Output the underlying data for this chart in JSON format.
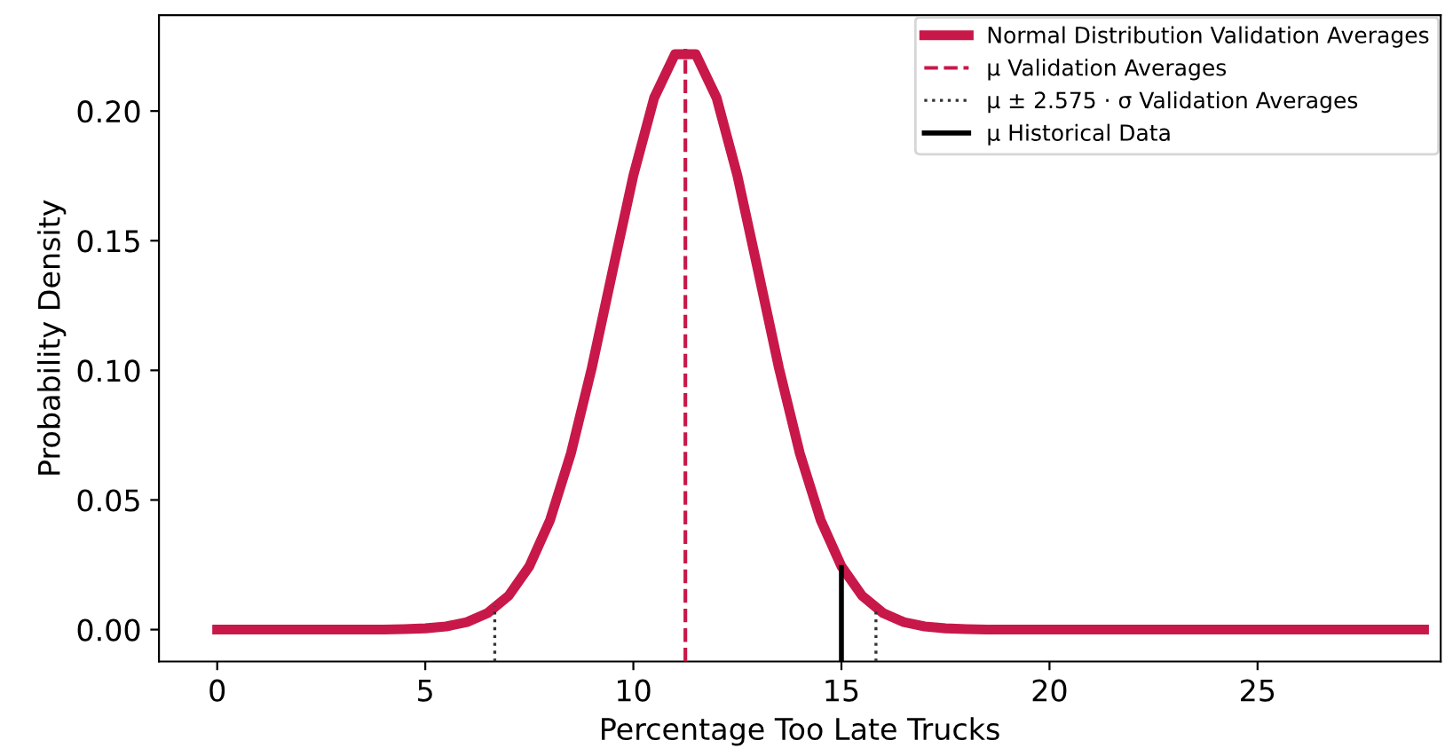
{
  "chart_data": {
    "type": "line",
    "xlabel": "Percentage Too Late Trucks",
    "ylabel": "Probability Density",
    "xlim": [
      -1.4,
      29.4
    ],
    "ylim": [
      -0.0123,
      0.237
    ],
    "xticks": [
      0,
      5,
      10,
      15,
      20,
      25
    ],
    "yticks": [
      {
        "value": 0,
        "label": "0.00"
      },
      {
        "value": 0.05,
        "label": "0.05"
      },
      {
        "value": 0.1,
        "label": "0.10"
      },
      {
        "value": 0.15,
        "label": "0.15"
      },
      {
        "value": 0.2,
        "label": "0.20"
      }
    ],
    "grid": false,
    "legend": "top right",
    "series": [
      {
        "name": "Normal Distribution Validation Averages",
        "color": "#c8184a",
        "line_style": "solid",
        "x": [
          0,
          0.5,
          1,
          1.5,
          2,
          2.5,
          3,
          3.5,
          4,
          4.5,
          5,
          5.5,
          6,
          6.5,
          7,
          7.5,
          8,
          8.5,
          9,
          9.5,
          10,
          10.5,
          11,
          11.5,
          12,
          12.5,
          13,
          13.5,
          14,
          14.5,
          15,
          15.5,
          16,
          16.5,
          17,
          17.5,
          18,
          18.5,
          19,
          19.5,
          20,
          20.5,
          21,
          21.5,
          22,
          22.5,
          23,
          23.5,
          24,
          24.5,
          25,
          25.5,
          26,
          26.5,
          27,
          27.5,
          28,
          28.5,
          29
        ],
        "values": [
          0,
          0,
          0,
          0,
          0,
          0,
          0,
          0,
          0,
          0.0002,
          0.0005,
          0.0012,
          0.0029,
          0.0064,
          0.013,
          0.0244,
          0.0423,
          0.068,
          0.1008,
          0.1382,
          0.1751,
          0.2051,
          0.2219,
          0.2219,
          0.2051,
          0.1751,
          0.1382,
          0.1008,
          0.068,
          0.0423,
          0.0244,
          0.013,
          0.0064,
          0.0029,
          0.0012,
          0.0005,
          0.0002,
          0,
          0,
          0,
          0,
          0,
          0,
          0,
          0,
          0,
          0,
          0,
          0,
          0,
          0,
          0,
          0,
          0,
          0,
          0,
          0,
          0,
          0
        ]
      },
      {
        "name": "μ Validation Averages",
        "color": "#c8184a",
        "line_style": "dashed",
        "x": [
          11.25,
          11.25
        ],
        "values": [
          -0.0123,
          0.224
        ]
      },
      {
        "name": "μ ± 2.575 · σ Validation Averages",
        "color": "#333333",
        "line_style": "dotted",
        "x": [
          6.67,
          6.67
        ],
        "values": [
          -0.0123,
          0.009
        ]
      },
      {
        "name": null,
        "color": "#333333",
        "line_style": "dotted",
        "x": [
          15.83,
          15.83
        ],
        "values": [
          -0.0123,
          0.0075
        ]
      },
      {
        "name": "μ Historical Data",
        "color": "#000000",
        "line_style": "solid",
        "x": [
          15.0,
          15.0
        ],
        "values": [
          -0.0123,
          0.024
        ]
      }
    ]
  }
}
